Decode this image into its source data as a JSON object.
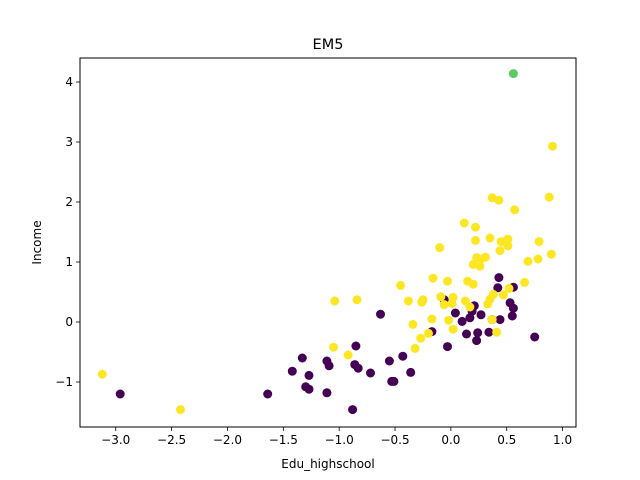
{
  "chart_data": {
    "type": "scatter",
    "title": "EM5",
    "xlabel": "Edu_highschool",
    "ylabel": "Income",
    "xlim": [
      -3.32,
      1.12
    ],
    "ylim": [
      -1.75,
      4.4
    ],
    "xticks": [
      -3.0,
      -2.5,
      -2.0,
      -1.5,
      -1.0,
      -0.5,
      0.0,
      0.5,
      1.0
    ],
    "xtick_labels": [
      "−3.0",
      "−2.5",
      "−2.0",
      "−1.5",
      "−1.0",
      "−0.5",
      "0.0",
      "0.5",
      "1.0"
    ],
    "yticks": [
      -1,
      0,
      1,
      2,
      3,
      4
    ],
    "ytick_labels": [
      "−1",
      "0",
      "1",
      "2",
      "3",
      "4"
    ],
    "grid": false,
    "series": [
      {
        "color": "#440154",
        "points": [
          [
            -2.96,
            -1.2
          ],
          [
            -1.64,
            -1.2
          ],
          [
            -1.42,
            -0.82
          ],
          [
            -1.33,
            -0.6
          ],
          [
            -1.3,
            -1.08
          ],
          [
            -1.27,
            -1.12
          ],
          [
            -1.27,
            -0.89
          ],
          [
            -1.11,
            -1.18
          ],
          [
            -1.11,
            -0.65
          ],
          [
            -1.09,
            -0.73
          ],
          [
            -0.88,
            -1.46
          ],
          [
            -0.86,
            -0.71
          ],
          [
            -0.85,
            -0.4
          ],
          [
            -0.83,
            -0.77
          ],
          [
            -0.72,
            -0.85
          ],
          [
            -0.63,
            0.13
          ],
          [
            -0.55,
            -0.65
          ],
          [
            -0.53,
            -0.99
          ],
          [
            -0.51,
            -0.99
          ],
          [
            -0.43,
            -0.57
          ],
          [
            -0.36,
            -0.84
          ],
          [
            -0.17,
            -0.16
          ],
          [
            -0.06,
            0.37
          ],
          [
            -0.03,
            -0.41
          ],
          [
            0.04,
            0.15
          ],
          [
            0.1,
            0.01
          ],
          [
            0.14,
            -0.2
          ],
          [
            0.17,
            0.07
          ],
          [
            0.19,
            0.18
          ],
          [
            0.21,
            0.27
          ],
          [
            0.23,
            -0.31
          ],
          [
            0.24,
            -0.18
          ],
          [
            0.27,
            0.12
          ],
          [
            0.34,
            -0.17
          ],
          [
            0.37,
            0.04
          ],
          [
            0.42,
            0.57
          ],
          [
            0.43,
            0.74
          ],
          [
            0.44,
            0.04
          ],
          [
            0.53,
            0.32
          ],
          [
            0.55,
            0.1
          ],
          [
            0.56,
            0.23
          ],
          [
            0.56,
            0.58
          ],
          [
            0.75,
            -0.25
          ]
        ]
      },
      {
        "color": "#fde725",
        "points": [
          [
            -3.12,
            -0.87
          ],
          [
            -2.42,
            -1.46
          ],
          [
            -1.04,
            0.35
          ],
          [
            -1.05,
            -0.42
          ],
          [
            -0.92,
            -0.55
          ],
          [
            -0.84,
            0.37
          ],
          [
            -0.45,
            0.61
          ],
          [
            -0.38,
            0.35
          ],
          [
            -0.34,
            -0.04
          ],
          [
            -0.32,
            -0.44
          ],
          [
            -0.27,
            -0.27
          ],
          [
            -0.26,
            0.33
          ],
          [
            -0.25,
            0.37
          ],
          [
            -0.2,
            -0.19
          ],
          [
            -0.17,
            0.05
          ],
          [
            -0.16,
            0.73
          ],
          [
            -0.1,
            1.24
          ],
          [
            -0.09,
            0.42
          ],
          [
            -0.06,
            0.29
          ],
          [
            -0.03,
            0.68
          ],
          [
            -0.02,
            0.03
          ],
          [
            0.01,
            0.31
          ],
          [
            0.02,
            0.41
          ],
          [
            0.02,
            -0.12
          ],
          [
            0.12,
            1.65
          ],
          [
            0.13,
            0.35
          ],
          [
            0.15,
            0.68
          ],
          [
            0.17,
            0.25
          ],
          [
            0.2,
            0.63
          ],
          [
            0.2,
            0.96
          ],
          [
            0.22,
            1.36
          ],
          [
            0.22,
            1.58
          ],
          [
            0.23,
            1.07
          ],
          [
            0.26,
            0.93
          ],
          [
            0.27,
            1.05
          ],
          [
            0.31,
            1.08
          ],
          [
            0.33,
            0.3
          ],
          [
            0.35,
            1.4
          ],
          [
            0.35,
            0.38
          ],
          [
            0.37,
            0.04
          ],
          [
            0.37,
            2.07
          ],
          [
            0.38,
            0.46
          ],
          [
            0.41,
            -0.17
          ],
          [
            0.43,
            2.03
          ],
          [
            0.44,
            1.19
          ],
          [
            0.45,
            1.34
          ],
          [
            0.47,
            0.45
          ],
          [
            0.51,
            1.27
          ],
          [
            0.51,
            1.38
          ],
          [
            0.52,
            0.56
          ],
          [
            0.57,
            1.87
          ],
          [
            0.66,
            0.66
          ],
          [
            0.69,
            1.01
          ],
          [
            0.78,
            1.05
          ],
          [
            0.79,
            1.34
          ],
          [
            0.88,
            2.08
          ],
          [
            0.9,
            1.13
          ],
          [
            0.91,
            2.93
          ]
        ]
      },
      {
        "color": "#5ec962",
        "points": [
          [
            0.56,
            4.14
          ]
        ]
      }
    ]
  }
}
